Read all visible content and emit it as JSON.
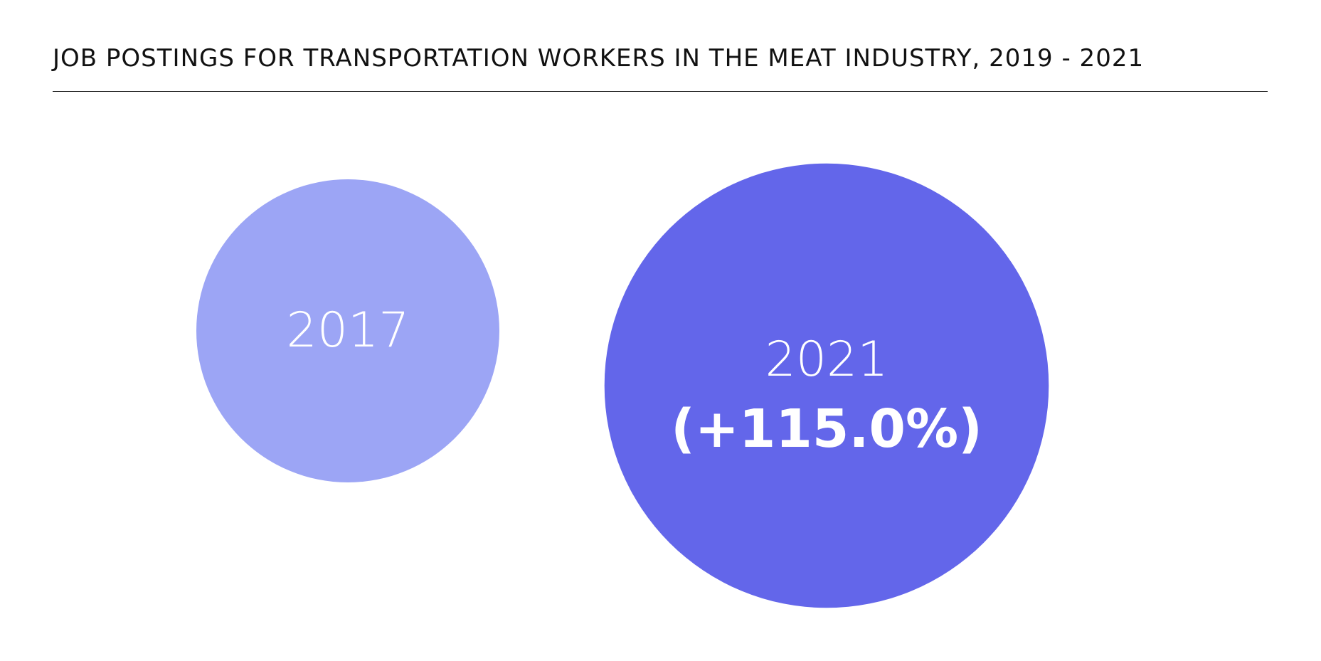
{
  "chart_data": {
    "type": "bubble",
    "title": "JOB POSTINGS FOR TRANSPORTATION WORKERS IN THE MEAT INDUSTRY, 2019 - 2021",
    "categories": [
      "2017",
      "2021"
    ],
    "values": [
      100,
      215
    ],
    "change_label": "(+115.0%)",
    "colors": [
      "#9ca5f5",
      "#6366ea"
    ],
    "text_color": "#ffffff"
  }
}
